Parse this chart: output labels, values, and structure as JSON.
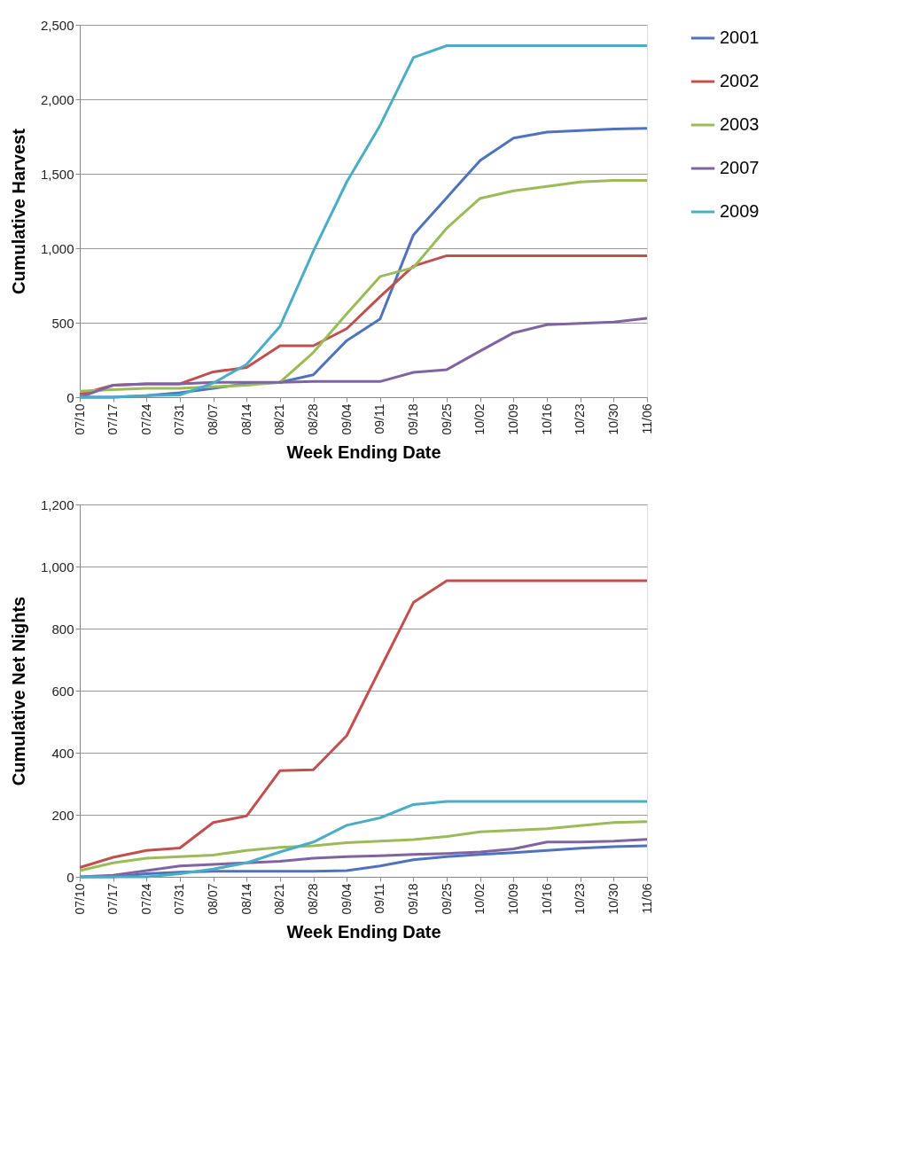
{
  "chart_data": [
    {
      "type": "line",
      "ylabel": "Cumulative Harvest",
      "xlabel": "Week Ending Date",
      "grid": "y",
      "legend": "right",
      "line_style": "solid",
      "marker": "none",
      "categories": [
        "07/10",
        "07/17",
        "07/24",
        "07/31",
        "08/07",
        "08/14",
        "08/21",
        "08/28",
        "09/04",
        "09/11",
        "09/18",
        "09/25",
        "10/02",
        "10/09",
        "10/16",
        "10/23",
        "10/30",
        "11/06"
      ],
      "ylim": [
        0,
        2500
      ],
      "yticks": [
        0,
        500,
        {
          "value": 1000,
          "label": "1,000"
        },
        {
          "value": 1500,
          "label": "1,500"
        },
        {
          "value": 2000,
          "label": "2,000"
        },
        {
          "value": 2500,
          "label": "2,500"
        }
      ],
      "series": [
        {
          "name": "2001",
          "color": "#4f72bd",
          "values": [
            0,
            0,
            10,
            30,
            60,
            90,
            100,
            150,
            380,
            525,
            1090,
            1340,
            1590,
            1740,
            1780,
            1790,
            1800,
            1805
          ]
        },
        {
          "name": "2002",
          "color": "#c0504d",
          "values": [
            20,
            80,
            90,
            90,
            170,
            200,
            345,
            345,
            460,
            675,
            880,
            950,
            950,
            950,
            950,
            950,
            950,
            950
          ]
        },
        {
          "name": "2003",
          "color": "#9bbb59",
          "values": [
            40,
            50,
            60,
            60,
            70,
            80,
            100,
            300,
            560,
            810,
            870,
            1135,
            1335,
            1385,
            1415,
            1445,
            1455,
            1455
          ]
        },
        {
          "name": "2007",
          "color": "#8064a2",
          "values": [
            0,
            80,
            90,
            90,
            100,
            100,
            100,
            105,
            105,
            105,
            167,
            185,
            310,
            432,
            487,
            495,
            505,
            530
          ]
        },
        {
          "name": "2009",
          "color": "#4bacc6",
          "values": [
            0,
            0,
            10,
            15,
            95,
            220,
            475,
            980,
            1445,
            1825,
            2280,
            2360,
            2360,
            2360,
            2360,
            2360,
            2360,
            2360
          ]
        }
      ]
    },
    {
      "type": "line",
      "ylabel": "Cumulative Net Nights",
      "xlabel": "Week Ending Date",
      "grid": "y",
      "legend": "right",
      "line_style": "solid",
      "marker": "none",
      "categories": [
        "07/10",
        "07/17",
        "07/24",
        "07/31",
        "08/07",
        "08/14",
        "08/21",
        "08/28",
        "09/04",
        "09/11",
        "09/18",
        "09/25",
        "10/02",
        "10/09",
        "10/16",
        "10/23",
        "10/30",
        "11/06"
      ],
      "ylim": [
        0,
        1200
      ],
      "yticks": [
        0,
        200,
        400,
        600,
        800,
        {
          "value": 1000,
          "label": "1,000"
        },
        {
          "value": 1200,
          "label": "1,200"
        }
      ],
      "series": [
        {
          "name": "2001",
          "color": "#4f72bd",
          "values": [
            0,
            0,
            10,
            15,
            18,
            18,
            18,
            18,
            20,
            35,
            55,
            65,
            72,
            78,
            85,
            92,
            97,
            100
          ]
        },
        {
          "name": "2002",
          "color": "#c0504d",
          "values": [
            30,
            63,
            85,
            93,
            175,
            196,
            342,
            345,
            455,
            670,
            884,
            954,
            954,
            954,
            954,
            954,
            954,
            954
          ]
        },
        {
          "name": "2003",
          "color": "#9bbb59",
          "values": [
            20,
            45,
            60,
            65,
            70,
            85,
            95,
            100,
            110,
            115,
            120,
            130,
            145,
            150,
            155,
            165,
            175,
            178
          ]
        },
        {
          "name": "2007",
          "color": "#8064a2",
          "values": [
            0,
            5,
            20,
            35,
            40,
            45,
            50,
            60,
            65,
            68,
            72,
            75,
            80,
            90,
            112,
            112,
            115,
            121
          ]
        },
        {
          "name": "2009",
          "color": "#4bacc6",
          "values": [
            0,
            0,
            0,
            10,
            25,
            45,
            80,
            112,
            166,
            190,
            233,
            243,
            243,
            243,
            243,
            243,
            243,
            243
          ]
        }
      ]
    }
  ]
}
